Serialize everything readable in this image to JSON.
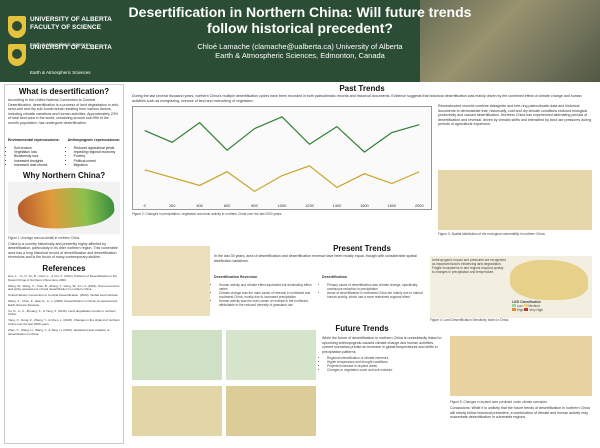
{
  "header": {
    "title": "Desertification in Northern China: Will future trends follow historical precedent?",
    "authors": "Chloé Lamache (clamache@ualberta.ca) University of Alberta",
    "affiliation": "Earth & Atmospheric Sciences, Edmonton, Canada",
    "logo_top_name": "UNIVERSITY OF ALBERTA FACULTY OF SCIENCE",
    "logo_top_dept": "Earth & Atmospheric Sciences",
    "logo_bottom_name": "UNIVERSITY OF ALBERTA",
    "logo_bottom_dept": "Earth & Atmospheric Sciences"
  },
  "left": {
    "what_title": "What is desertification?",
    "what_text": "According to the United Nations Convention to Combat Desertification, desertification is a process of land degradation in arid, semi-arid and dry sub-humid areas resulting from various factors, including climatic variations and human activities. Approximately 23% of total land area in the world, containing around one-fifth of the world's population, has undergone desertification.",
    "env_title": "Environmental repercussions:",
    "env_items": [
      "Soil erosion",
      "Vegetation loss",
      "Biodiversity loss",
      "Increased droughts",
      "Increased dust storms"
    ],
    "anthro_title": "Anthropogenic repercussions:",
    "anthro_items": [
      "Reduced agricultural yields",
      "Impeding regional economy",
      "Poverty",
      "Political unrest",
      "Migration"
    ],
    "why_title": "Why Northern China?",
    "why_caption": "Figure 1: Average annual rainfall in northern China.",
    "why_text": "China is a country historically and presently highly affected by desertification, particularly in its drier northern region. This vulnerable area has a long historical record of desertification and desertification reversions and is the focus of many contemporary studies.",
    "refs_title": "References",
    "refs": [
      "Huo, L., Yu, P., Xu, B., Chen, L., & Cui, X. (2021). Patterns of Desertification in the Desert Fringe in Northern China since 2000.",
      "Wang, W., Wang, X., Yuan, B., Zhang, Y., Hong, W., & Li, F. (2022). Socio-economic and policy assessment of land desertification in northern China.",
      "United Nations Convention to Combat Desertification. (2022). Global Land Outlook.",
      "Wang, X., Chen, F., Hasi, E., Li, J. (2008). Desertification in China: An assessment. Earth-Science Reviews.",
      "Xu, D., Li, C., Zhuang, X., & Yang, X. (2019). Land degradation trends in northern China.",
      "Yang, X., Dong, Z., Zhang, Y., & Chen, L. (2018). Changes in the dryland of northern China over the last 2000 years.",
      "Zhao, X., Wang, H., Wang, Y., & Tang, H. (2023). Spatiotemporal variation of desertification in China."
    ]
  },
  "past": {
    "title": "Past Trends",
    "intro": "During the last several thousand years, northern China's multiple desertification cycles have been recorded in both paleoclimatic records and historical documents. Evidence suggests that historical desertification was mainly driven by the combined effect of climate change and human activities such as overgrazing, overuse of land and overcutting of vegetation.",
    "plot_caption": "Figure 2: Changes in precipitation, vegetation and dune activity in northern China over the last 2000 years.",
    "side_text": "Reconstructed records combine stalagmite and tree-ring paleoclimatic data and historical documents to demonstrate that, historically, cold and dry climate conditions reduced biological productivity and caused desertification. Northern China has experienced alternating periods of desertification and reversal, driven by climatic shifts and intensified by land use pressures during periods of agricultural expansion.",
    "map_caption": "Figure 3: Spatial distribution of the ecological vulnerability in northern China."
  },
  "present": {
    "title": "Present Trends",
    "intro": "In the last 30 years, area of desertification and desertification reversal have been mostly equal, though with considerable spatial distribution variations.",
    "rev_title": "Desertification Reversion",
    "rev_items": [
      "Human activity and climate effect equivalent but dominating effect varies",
      "Climate change was the main cause of reversal in northwest and southwest China, mostly due to increased precipitation",
      "Human activity was the main cause of reversal in the northeast, attributable to the reduced intensity of grassland use"
    ],
    "des_title": "Desertification",
    "des_items": [
      "Primary cause of desertification was climate change, specifically continuous reduction in precipitation",
      "Areas of desertification in northwest China are mainly due to natural human activity, which had a more restrained regional effect"
    ],
    "side_text": "Anthropogenic impact and pressures are recognized as important factors influencing land degradation. Fragile ecosystems in arid regions respond quickly to changes in precipitation and temperature.",
    "map_caption": "Figure 4: Land Desertification Sensitivity Index in China.",
    "legend_title": "LDSI Classification",
    "legend_items": [
      "Low",
      "Medium",
      "High",
      "Very High"
    ]
  },
  "future": {
    "title": "Future Trends",
    "intro": "While the future of desertification in northern China is undoubtedly linked to upcoming anthropogenic-caused climate change and human activities, current scenarios predict an increase in global temperatures and shifts in precipitation patterns.",
    "points": [
      "Regional intensification of climate extremes",
      "Higher temperature and drought conditions",
      "Projected increase in dryland areas",
      "Changes in vegetation cover and soil moisture"
    ],
    "map_caption": "Figure 5: Changes in dryland area predicted under climate scenarios.",
    "concl": "Conclusions: While it is unlikely that the future trends of desertification in northern China will strictly follow historical precedent, a combination of climate and human activity may exacerbate desertification in vulnerable regions."
  },
  "chart_data": {
    "type": "line",
    "title": "",
    "xlabel": "",
    "ylabel": "",
    "x": [
      0,
      200,
      400,
      600,
      800,
      1000,
      1200,
      1400,
      1600,
      1800,
      2000
    ],
    "series": [
      {
        "values": [
          0.2,
          -0.4,
          0.6,
          -0.8,
          0.3,
          0.9,
          -0.5,
          0.4,
          -0.9,
          0.1,
          0.5
        ]
      },
      {
        "values": [
          0.5,
          0.1,
          -0.3,
          0.4,
          -0.6,
          0.2,
          0.7,
          -0.4,
          0.3,
          -0.2,
          0.4
        ]
      }
    ],
    "colors": {
      "primary": "#2e7d32",
      "secondary": "#c9a227"
    }
  }
}
